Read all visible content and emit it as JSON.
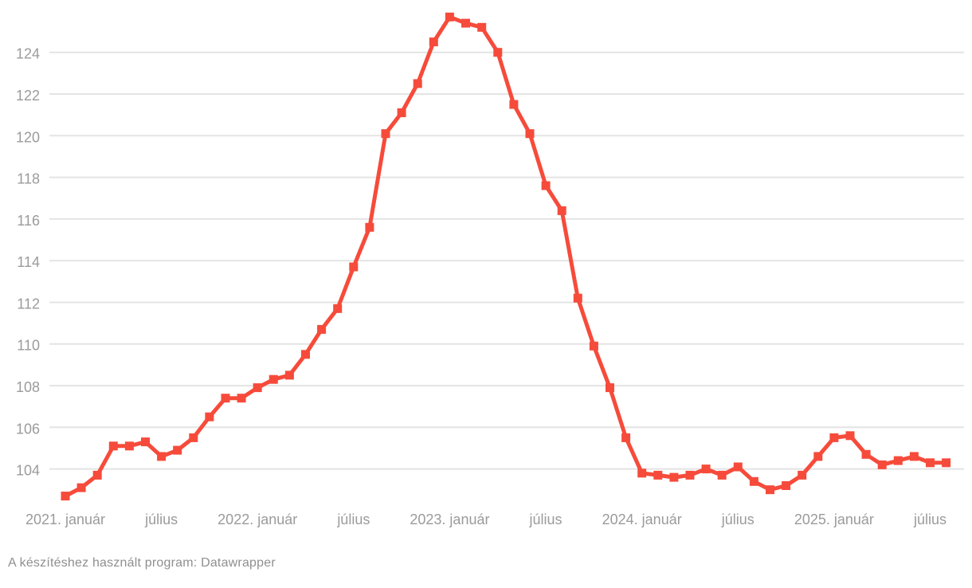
{
  "chart_data": {
    "type": "line",
    "title": "",
    "x": [
      "2021-01",
      "2021-02",
      "2021-03",
      "2021-04",
      "2021-05",
      "2021-06",
      "2021-07",
      "2021-08",
      "2021-09",
      "2021-10",
      "2021-11",
      "2021-12",
      "2022-01",
      "2022-02",
      "2022-03",
      "2022-04",
      "2022-05",
      "2022-06",
      "2022-07",
      "2022-08",
      "2022-09",
      "2022-10",
      "2022-11",
      "2022-12",
      "2023-01",
      "2023-02",
      "2023-03",
      "2023-04",
      "2023-05",
      "2023-06",
      "2023-07",
      "2023-08",
      "2023-09",
      "2023-10",
      "2023-11",
      "2023-12",
      "2024-01",
      "2024-02",
      "2024-03",
      "2024-04",
      "2024-05",
      "2024-06",
      "2024-07",
      "2024-08",
      "2024-09",
      "2024-10",
      "2024-11",
      "2024-12",
      "2025-01",
      "2025-02",
      "2025-03",
      "2025-04",
      "2025-05",
      "2025-06",
      "2025-07",
      "2025-08"
    ],
    "values": [
      102.7,
      103.1,
      103.7,
      105.1,
      105.1,
      105.3,
      104.6,
      104.9,
      105.5,
      106.5,
      107.4,
      107.4,
      107.9,
      108.3,
      108.5,
      109.5,
      110.7,
      111.7,
      113.7,
      115.6,
      120.1,
      121.1,
      122.5,
      124.5,
      125.7,
      125.4,
      125.2,
      124.0,
      121.5,
      120.1,
      117.6,
      116.4,
      112.2,
      109.9,
      107.9,
      105.5,
      103.8,
      103.7,
      103.6,
      103.7,
      104.0,
      103.7,
      104.1,
      103.4,
      103.0,
      103.2,
      103.7,
      104.6,
      105.5,
      105.6,
      104.7,
      104.2,
      104.4,
      104.6,
      104.3,
      104.3
    ],
    "y_ticks": [
      104,
      106,
      108,
      110,
      112,
      114,
      116,
      118,
      120,
      122,
      124
    ],
    "x_ticks": [
      {
        "index": 0,
        "label": "2021. január"
      },
      {
        "index": 6,
        "label": "július"
      },
      {
        "index": 12,
        "label": "2022. január"
      },
      {
        "index": 18,
        "label": "július"
      },
      {
        "index": 24,
        "label": "2023. január"
      },
      {
        "index": 30,
        "label": "július"
      },
      {
        "index": 36,
        "label": "2024. január"
      },
      {
        "index": 42,
        "label": "július"
      },
      {
        "index": 48,
        "label": "2025. január"
      },
      {
        "index": 54,
        "label": "július"
      }
    ],
    "ylim": [
      102.5,
      126.5
    ],
    "grid": "horizontal-only",
    "legend": "none",
    "marker": "square",
    "xlabel": "",
    "ylabel": ""
  },
  "colors": {
    "line": "#f64b3b",
    "grid": "#e4e4e4",
    "axis_label": "#9b9b9b",
    "footer_text": "#8f8f8f",
    "background": "#ffffff"
  },
  "footer": {
    "text": "A készítéshez használt program: Datawrapper"
  }
}
